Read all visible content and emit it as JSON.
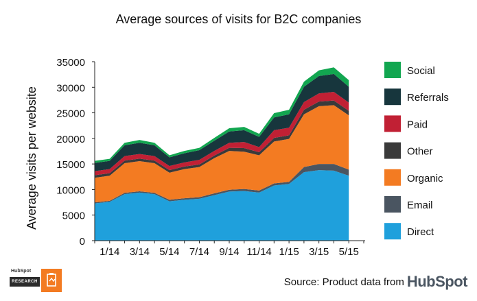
{
  "header": {
    "title": "Average sources of visits for B2C companies"
  },
  "chart_data": {
    "type": "area",
    "stacked": true,
    "title": "Average sources of visits for B2C companies",
    "xlabel": "",
    "ylabel": "Average visits per website",
    "ylim": [
      0,
      35000
    ],
    "yticks": [
      0,
      5000,
      10000,
      15000,
      20000,
      25000,
      30000,
      35000
    ],
    "x_tick_labels": [
      "1/14",
      "3/14",
      "5/14",
      "7/14",
      "9/14",
      "11/14",
      "1/15",
      "3/15",
      "5/15"
    ],
    "x": [
      "12/13",
      "1/14",
      "2/14",
      "3/14",
      "4/14",
      "5/14",
      "6/14",
      "7/14",
      "8/14",
      "9/14",
      "10/14",
      "11/14",
      "12/14",
      "1/15",
      "2/15",
      "3/15",
      "4/15",
      "5/15",
      "6/15"
    ],
    "grid": false,
    "legend_position": "right",
    "series": [
      {
        "name": "Direct",
        "color": "#1fa0dc",
        "values": [
          7300,
          7600,
          9100,
          9400,
          9100,
          7700,
          8000,
          8200,
          8900,
          9600,
          9700,
          9400,
          10800,
          11100,
          13400,
          13800,
          13700,
          12700,
          null
        ]
      },
      {
        "name": "Email",
        "color": "#4a5561",
        "values": [
          200,
          200,
          250,
          250,
          250,
          300,
          300,
          300,
          350,
          350,
          400,
          400,
          400,
          400,
          1000,
          1200,
          1300,
          1200,
          null
        ]
      },
      {
        "name": "Organic",
        "color": "#f37b22",
        "values": [
          4800,
          4900,
          5800,
          5900,
          5800,
          5300,
          5700,
          5900,
          6900,
          7600,
          7300,
          6900,
          8200,
          8400,
          10300,
          11300,
          11500,
          10600,
          null
        ]
      },
      {
        "name": "Other",
        "color": "#3a3a3a",
        "values": [
          500,
          500,
          500,
          500,
          500,
          500,
          500,
          500,
          500,
          600,
          700,
          600,
          700,
          700,
          900,
          900,
          900,
          900,
          null
        ]
      },
      {
        "name": "Paid",
        "color": "#c12034",
        "values": [
          800,
          800,
          900,
          900,
          900,
          800,
          800,
          900,
          900,
          1000,
          1200,
          1000,
          1500,
          1500,
          1500,
          1600,
          1700,
          1600,
          null
        ]
      },
      {
        "name": "Referrals",
        "color": "#17363d",
        "values": [
          1600,
          1600,
          2100,
          2200,
          2100,
          1700,
          1800,
          1900,
          2000,
          2200,
          2300,
          2000,
          2500,
          2600,
          3000,
          3400,
          3500,
          3100,
          null
        ]
      },
      {
        "name": "Social",
        "color": "#12a650",
        "values": [
          400,
          400,
          500,
          550,
          500,
          400,
          450,
          450,
          550,
          650,
          650,
          600,
          850,
          900,
          1000,
          1100,
          1300,
          1300,
          null
        ]
      }
    ]
  },
  "source": {
    "prefix": "Source: Product data from",
    "brand": "HubSpot"
  },
  "logo": {
    "brand": "HubSpot",
    "label": "RESEARCH"
  }
}
